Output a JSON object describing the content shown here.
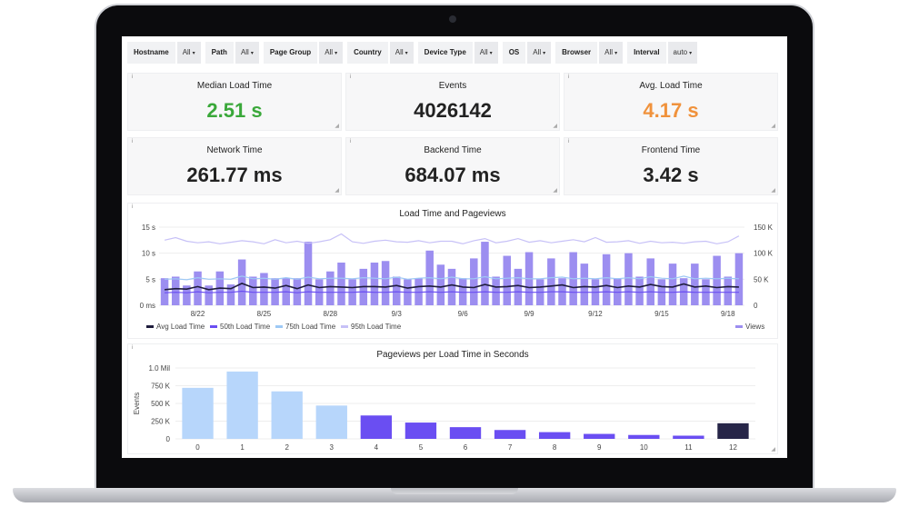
{
  "filters": [
    {
      "label": "Hostname",
      "value": "All"
    },
    {
      "label": "Path",
      "value": "All"
    },
    {
      "label": "Page Group",
      "value": "All"
    },
    {
      "label": "Country",
      "value": "All"
    },
    {
      "label": "Device Type",
      "value": "All"
    },
    {
      "label": "OS",
      "value": "All"
    },
    {
      "label": "Browser",
      "value": "All"
    },
    {
      "label": "Interval",
      "value": "auto"
    }
  ],
  "stats": [
    {
      "title": "Median Load Time",
      "value": "2.51 s",
      "color": "#3aa83a"
    },
    {
      "title": "Events",
      "value": "4026142",
      "color": "#222222"
    },
    {
      "title": "Avg. Load Time",
      "value": "4.17 s",
      "color": "#f0923c"
    },
    {
      "title": "Network Time",
      "value": "261.77 ms",
      "color": "#222222"
    },
    {
      "title": "Backend Time",
      "value": "684.07 ms",
      "color": "#222222"
    },
    {
      "title": "Frontend Time",
      "value": "3.42 s",
      "color": "#222222"
    }
  ],
  "info_icon": "i",
  "colors": {
    "views_bar": "#9c8ef0",
    "avg": "#1f1d3d",
    "p50": "#6a4ef2",
    "p75": "#9ec9f5",
    "p95": "#c7c1f7",
    "light_bar": "#b7d6fb",
    "dark_bar": "#6a4ef2",
    "last_bar": "#262547"
  },
  "chart_data": [
    {
      "type": "bar",
      "title": "Load Time and Pageviews",
      "x_tick_labels": [
        "8/22",
        "8/25",
        "8/28",
        "9/3",
        "9/6",
        "9/9",
        "9/12",
        "9/15",
        "9/18"
      ],
      "y_left_ticks": [
        "0 ms",
        "5 s",
        "10 s",
        "15 s"
      ],
      "y_left_lim": [
        0,
        15
      ],
      "y_right_ticks": [
        "0",
        "50 K",
        "100 K",
        "150 K"
      ],
      "y_right_lim": [
        0,
        150000
      ],
      "legend": [
        "Avg Load Time",
        "50th Load Time",
        "75th Load Time",
        "95th Load Time",
        "Views"
      ],
      "series": [
        {
          "name": "Views",
          "type": "bar",
          "values": [
            52000,
            55000,
            38000,
            65000,
            38000,
            65000,
            40000,
            88000,
            55000,
            62000,
            52000,
            52000,
            52000,
            122000,
            50000,
            65000,
            82000,
            50000,
            70000,
            82000,
            85000,
            55000,
            50000,
            52000,
            105000,
            78000,
            70000,
            52000,
            90000,
            122000,
            55000,
            95000,
            70000,
            102000,
            50000,
            90000,
            52000,
            102000,
            80000,
            50000,
            98000,
            52000,
            100000,
            55000,
            90000,
            50000,
            80000,
            52000,
            80000,
            50000,
            95000,
            55000,
            100000
          ]
        },
        {
          "name": "Avg Load Time",
          "type": "line",
          "values": [
            3.0,
            3.2,
            3.1,
            3.6,
            3.0,
            3.3,
            3.2,
            4.2,
            3.4,
            3.5,
            3.3,
            3.8,
            3.2,
            3.9,
            3.4,
            3.6,
            3.5,
            3.4,
            3.6,
            3.6,
            3.5,
            3.8,
            3.3,
            3.6,
            3.7,
            3.5,
            3.9,
            3.5,
            3.4,
            4.0,
            3.5,
            3.6,
            3.8,
            3.4,
            3.5,
            3.7,
            3.9,
            3.4,
            3.6,
            3.5,
            3.8,
            3.4,
            3.7,
            3.5,
            4.0,
            3.6,
            3.5,
            4.1,
            3.5,
            3.7,
            3.4,
            3.6,
            3.5
          ]
        },
        {
          "name": "50th Load Time",
          "type": "line",
          "values": [
            2.4,
            2.5,
            2.4,
            2.6,
            2.4,
            2.5,
            2.5,
            2.7,
            2.5,
            2.5,
            2.5,
            2.6,
            2.4,
            2.6,
            2.5,
            2.5,
            2.5,
            2.5,
            2.6,
            2.5,
            2.5,
            2.6,
            2.5,
            2.5,
            2.6,
            2.5,
            2.6,
            2.5,
            2.5,
            2.6,
            2.5,
            2.5,
            2.6,
            2.5,
            2.5,
            2.6,
            2.6,
            2.5,
            2.5,
            2.5,
            2.6,
            2.5,
            2.6,
            2.5,
            2.6,
            2.5,
            2.5,
            2.6,
            2.5,
            2.5,
            2.5,
            2.5,
            2.5
          ]
        },
        {
          "name": "75th Load Time",
          "type": "line",
          "values": [
            5.0,
            5.1,
            4.9,
            5.3,
            5.0,
            5.1,
            5.0,
            5.6,
            5.1,
            5.2,
            5.0,
            5.3,
            5.0,
            5.4,
            5.1,
            5.2,
            5.2,
            5.1,
            5.3,
            5.2,
            5.1,
            5.4,
            5.0,
            5.2,
            5.3,
            5.1,
            5.4,
            5.1,
            5.1,
            5.5,
            5.1,
            5.2,
            5.3,
            5.1,
            5.1,
            5.3,
            5.4,
            5.1,
            5.2,
            5.1,
            5.3,
            5.1,
            5.3,
            5.1,
            5.5,
            5.2,
            5.1,
            5.6,
            5.1,
            5.2,
            5.1,
            5.2,
            5.1
          ]
        },
        {
          "name": "95th Load Time",
          "type": "line",
          "values": [
            12.5,
            13.0,
            12.3,
            12.0,
            12.2,
            11.8,
            12.1,
            12.4,
            12.2,
            11.8,
            12.6,
            12.0,
            12.3,
            11.9,
            12.2,
            12.6,
            13.7,
            12.2,
            11.9,
            12.3,
            12.5,
            12.2,
            12.1,
            12.4,
            12.0,
            12.3,
            12.3,
            11.8,
            12.4,
            12.8,
            12.0,
            12.3,
            12.8,
            12.1,
            12.4,
            12.0,
            12.3,
            12.6,
            12.2,
            13.0,
            12.1,
            12.2,
            12.4,
            11.9,
            12.3,
            12.0,
            12.1,
            11.9,
            12.2,
            12.3,
            11.8,
            12.2,
            13.3
          ]
        }
      ]
    },
    {
      "type": "bar",
      "title": "Pageviews per Load Time in Seconds",
      "ylabel": "Events",
      "categories": [
        "0",
        "1",
        "2",
        "3",
        "4",
        "5",
        "6",
        "7",
        "8",
        "9",
        "10",
        "11",
        "12"
      ],
      "values": [
        720000,
        950000,
        670000,
        470000,
        330000,
        230000,
        165000,
        125000,
        95000,
        70000,
        55000,
        45000,
        220000
      ],
      "y_ticks": [
        "0",
        "250 K",
        "500 K",
        "750 K",
        "1.0 Mil"
      ],
      "ylim": [
        0,
        1000000
      ]
    }
  ]
}
